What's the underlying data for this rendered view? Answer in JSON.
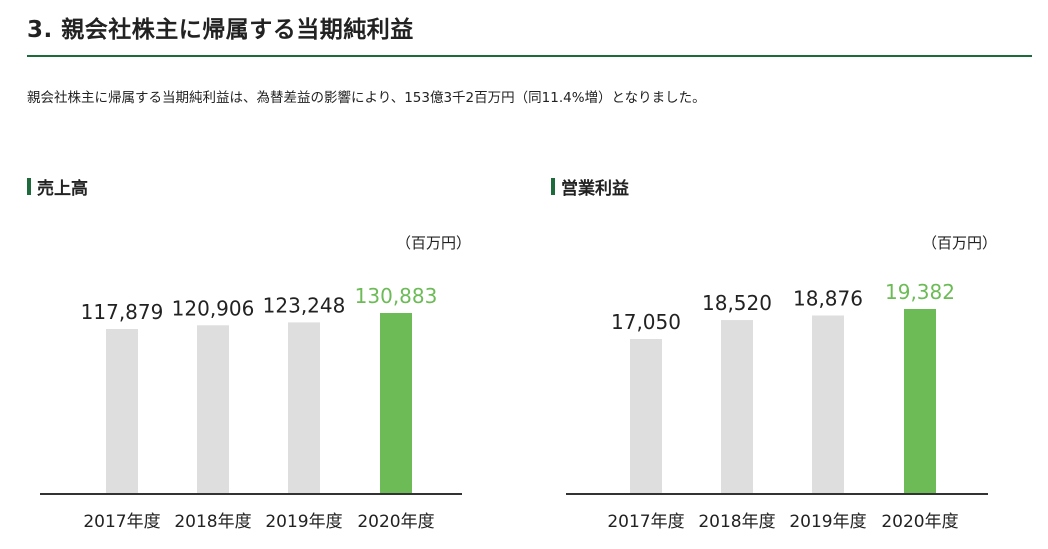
{
  "section": {
    "title": "3. 親会社株主に帰属する当期純利益",
    "summary": "親会社株主に帰属する当期純利益は、為替差益の影響により、153億3千2百万円（同11.4%増）となりました。"
  },
  "colors": {
    "accent": "#1d6b3a",
    "highlight_bar": "#6cbb56",
    "normal_bar": "#dedede",
    "highlight_text": "#6cbb56"
  },
  "chart_data": [
    {
      "type": "bar",
      "title": "売上高",
      "unit": "（百万円）",
      "categories": [
        "2017年度",
        "2018年度",
        "2019年度",
        "2020年度"
      ],
      "values": [
        117879,
        120906,
        123248,
        130883
      ],
      "value_labels": [
        "117,879",
        "120,906",
        "123,248",
        "130,883"
      ],
      "highlight_index": 3,
      "grid": false,
      "axis_ticks": false
    },
    {
      "type": "bar",
      "title": "営業利益",
      "unit": "（百万円）",
      "categories": [
        "2017年度",
        "2018年度",
        "2019年度",
        "2020年度"
      ],
      "values": [
        17050,
        18520,
        18876,
        19382
      ],
      "value_labels": [
        "17,050",
        "18,520",
        "18,876",
        "19,382"
      ],
      "highlight_index": 3,
      "grid": false,
      "axis_ticks": false
    }
  ]
}
